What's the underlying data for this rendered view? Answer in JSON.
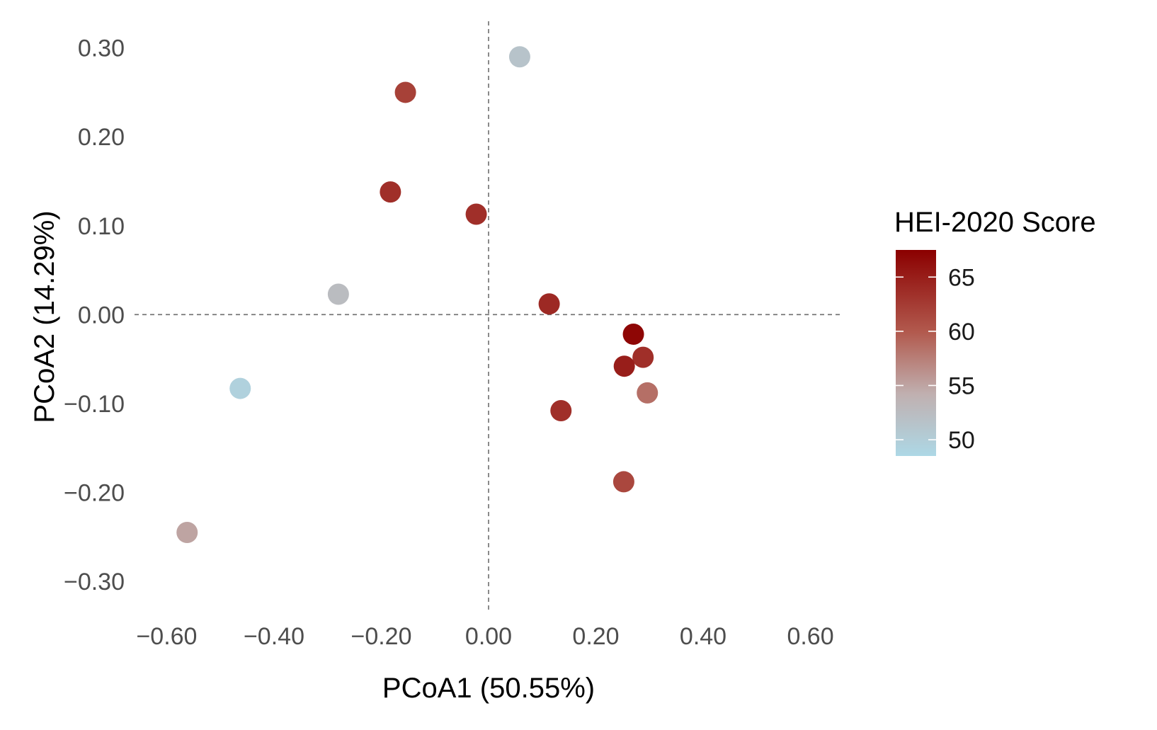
{
  "chart_data": {
    "type": "scatter",
    "title": "",
    "xlabel": "PCoA1 (50.55%)",
    "ylabel": "PCoA2 (14.29%)",
    "xlim": [
      -0.66,
      0.66
    ],
    "ylim": [
      -0.335,
      0.33
    ],
    "x_ticks": [
      -0.6,
      -0.4,
      -0.2,
      0.0,
      0.2,
      0.4,
      0.6
    ],
    "x_tick_labels": [
      "−0.60",
      "−0.40",
      "−0.20",
      "0.00",
      "0.20",
      "0.40",
      "0.60"
    ],
    "y_ticks": [
      0.3,
      0.2,
      0.1,
      0.0,
      -0.1,
      -0.2,
      -0.3
    ],
    "y_tick_labels": [
      "0.30",
      "0.20",
      "0.10",
      "0.00",
      "−0.10",
      "−0.20",
      "−0.30"
    ],
    "reference_lines": {
      "x": 0.0,
      "y": 0.0,
      "style": "dashed"
    },
    "grid": false,
    "color_scale": {
      "title": "HEI-2020 Score",
      "min": 48.5,
      "max": 67.5,
      "low_color": "#add8e6",
      "high_color": "#8b0000",
      "breaks": [
        65,
        60,
        55,
        50
      ],
      "break_labels": [
        "65",
        "60",
        "55",
        "50"
      ]
    },
    "legend_position": "right",
    "points": [
      {
        "x": 0.058,
        "y": 0.29,
        "score": 51.5
      },
      {
        "x": -0.155,
        "y": 0.25,
        "score": 62.0
      },
      {
        "x": -0.183,
        "y": 0.138,
        "score": 63.5
      },
      {
        "x": -0.023,
        "y": 0.113,
        "score": 63.5
      },
      {
        "x": -0.28,
        "y": 0.023,
        "score": 52.5
      },
      {
        "x": 0.113,
        "y": 0.012,
        "score": 64.0
      },
      {
        "x": 0.27,
        "y": -0.022,
        "score": 67.0
      },
      {
        "x": 0.288,
        "y": -0.048,
        "score": 63.5
      },
      {
        "x": 0.253,
        "y": -0.058,
        "score": 65.0
      },
      {
        "x": 0.296,
        "y": -0.088,
        "score": 58.5
      },
      {
        "x": -0.463,
        "y": -0.083,
        "score": 49.5
      },
      {
        "x": 0.135,
        "y": -0.108,
        "score": 63.5
      },
      {
        "x": 0.252,
        "y": -0.188,
        "score": 61.5
      },
      {
        "x": -0.562,
        "y": -0.245,
        "score": 55.0
      }
    ]
  }
}
